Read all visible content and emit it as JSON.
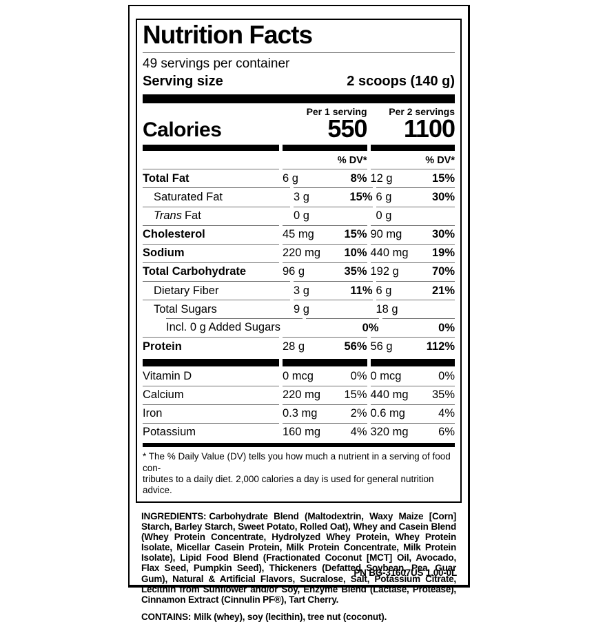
{
  "nutrition": {
    "title": "Nutrition Facts",
    "servings_per_container": "49 servings per container",
    "serving_size_label": "Serving size",
    "serving_size_value": "2 scoops (140 g)",
    "calories": {
      "label": "Calories",
      "per1_header": "Per 1 serving",
      "per2_header": "Per 2 servings",
      "per1_value": "550",
      "per2_value": "1100"
    },
    "dv_header_1": "% DV*",
    "dv_header_2": "% DV*",
    "rows": [
      {
        "name": "Total Fat",
        "amount1": "6 g",
        "dv1": "8%",
        "amount2": "12 g",
        "dv2": "15%"
      },
      {
        "name": "Saturated Fat",
        "amount1": "3 g",
        "dv1": "15%",
        "amount2": "6 g",
        "dv2": "30%"
      },
      {
        "name_italic": "Trans",
        "name_rest": "Fat",
        "amount1": "0 g",
        "dv1": "",
        "amount2": "0 g",
        "dv2": ""
      },
      {
        "name": "Cholesterol",
        "amount1": "45 mg",
        "dv1": "15%",
        "amount2": "90 mg",
        "dv2": "30%"
      },
      {
        "name": "Sodium",
        "amount1": "220 mg",
        "dv1": "10%",
        "amount2": "440 mg",
        "dv2": "19%"
      },
      {
        "name": "Total Carbohydrate",
        "amount1": "96 g",
        "dv1": "35%",
        "amount2": "192 g",
        "dv2": "70%"
      },
      {
        "name": "Dietary Fiber",
        "amount1": "3 g",
        "dv1": "11%",
        "amount2": "6 g",
        "dv2": "21%"
      },
      {
        "name": "Total Sugars",
        "amount1": "9 g",
        "dv1": "",
        "amount2": "18 g",
        "dv2": ""
      },
      {
        "name": "Incl. 0 g Added Sugars",
        "amount1": "",
        "dv1": "0%",
        "amount2": "",
        "dv2": "0%"
      },
      {
        "name": "Protein",
        "amount1": "28 g",
        "dv1": "56%",
        "amount2": "56 g",
        "dv2": "112%"
      }
    ],
    "vitamins": [
      {
        "name": "Vitamin D",
        "amount1": "0 mcg",
        "dv1": "0%",
        "amount2": "0 mcg",
        "dv2": "0%"
      },
      {
        "name": "Calcium",
        "amount1": "220 mg",
        "dv1": "15%",
        "amount2": "440 mg",
        "dv2": "35%"
      },
      {
        "name": "Iron",
        "amount1": "0.3 mg",
        "dv1": "2%",
        "amount2": "0.6 mg",
        "dv2": "4%"
      },
      {
        "name": "Potassium",
        "amount1": "160 mg",
        "dv1": "4%",
        "amount2": "320 mg",
        "dv2": "6%"
      }
    ],
    "footnote_line1": "* The % Daily Value (DV) tells you how much a nutrient in a serving of food con-",
    "footnote_line2": "tributes to a daily diet. 2,000 calories a day is used for general nutrition advice."
  },
  "ingredients": {
    "label": "INGREDIENTS:",
    "text": "Carbohydrate Blend (Maltodextrin, Waxy Maize [Corn] Starch, Barley Starch, Sweet Potato, Rolled Oat), Whey and Casein Blend (Whey Protein Concentrate, Hydrolyzed Whey Protein, Whey Protein Isolate, Micellar Casein Protein, Milk Protein Concentrate, Milk Protein Isolate), Lipid Food Blend (Fractionated Coconut [MCT] Oil, Avocado, Flax Seed, Pumpkin Seed), Thickeners (Defatted Soybean, Pea, Guar Gum), Natural & Artificial Flavors, Sucralose, Salt, Potassium Citrate, Lecithin from Sunflower and/or Soy, Enzyme Blend (Lactase, Protease), Cinnamon Extract (Cinnulin PF®), Tart Cherry."
  },
  "contains": {
    "label": "CONTAINS:",
    "text": "Milk (whey), soy (lecithin), tree nut (coconut)."
  },
  "part_number": "PN BG-31607US 1.00-0L",
  "colors": {
    "text": "#000000",
    "background": "#ffffff",
    "hairline": "#6e6e6e"
  }
}
